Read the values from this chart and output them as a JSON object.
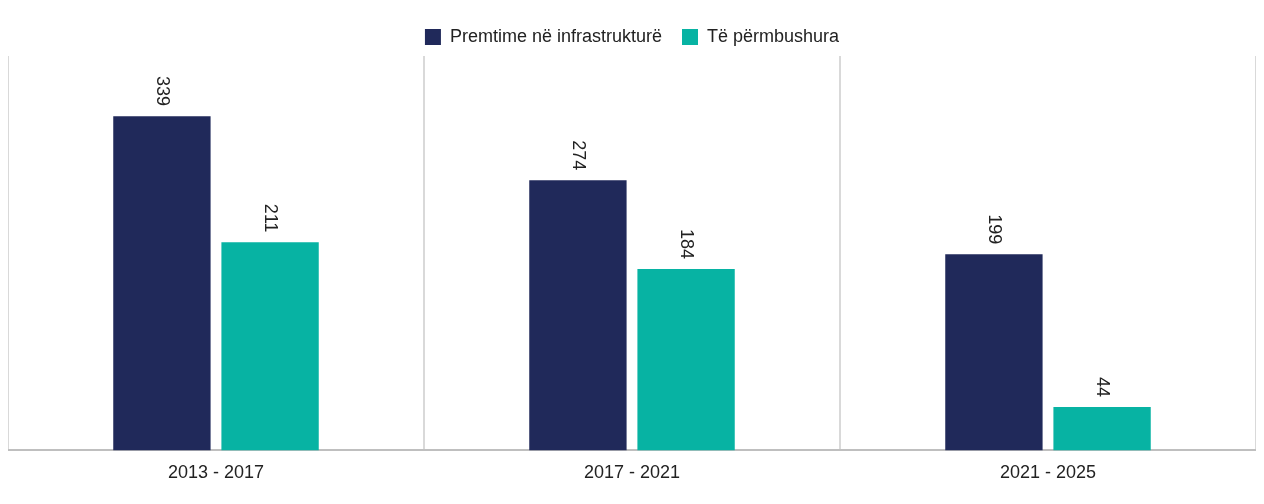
{
  "chart_data": {
    "type": "bar",
    "categories": [
      "2013 - 2017",
      "2017 - 2021",
      "2021 - 2025"
    ],
    "series": [
      {
        "name": "Premtime në infrastrukturë",
        "color": "#20295a",
        "values": [
          339,
          274,
          199
        ]
      },
      {
        "name": "Të përmbushura",
        "color": "#07b3a3",
        "values": [
          211,
          184,
          44
        ]
      }
    ],
    "data_labels": true,
    "grid": "x",
    "legend": "top"
  }
}
